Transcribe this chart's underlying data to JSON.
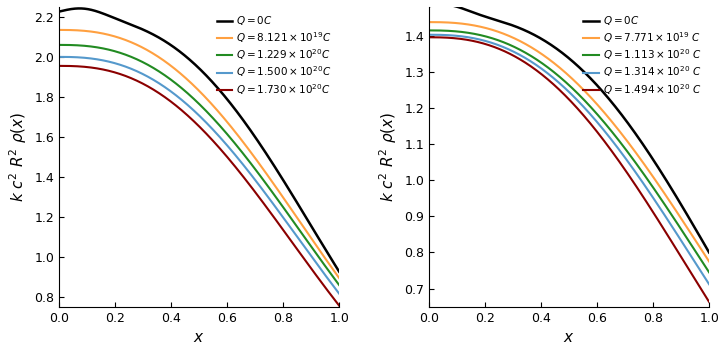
{
  "left": {
    "ylabel": "$k\\ c^2\\ R^2\\ \\rho(x)$",
    "xlabel": "$x$",
    "ylim": [
      0.75,
      2.25
    ],
    "xlim": [
      0,
      1
    ],
    "yticks": [
      0.8,
      1.0,
      1.2,
      1.4,
      1.6,
      1.8,
      2.0,
      2.2
    ],
    "xticks": [
      0.0,
      0.2,
      0.4,
      0.6,
      0.8,
      1.0
    ],
    "curves": [
      {
        "label": "$Q=0C$",
        "color": "#000000",
        "rho0": 2.2,
        "rho1": 0.925,
        "peak_x": 0.08
      },
      {
        "label": "$Q=8.121\\times10^{19}C$",
        "color": "#FFA040",
        "rho0": 2.135,
        "rho1": 0.893,
        "peak_x": 0.0
      },
      {
        "label": "$Q=1.229\\times10^{20}C$",
        "color": "#228B22",
        "rho0": 2.06,
        "rho1": 0.858,
        "peak_x": 0.0
      },
      {
        "label": "$Q=1.500\\times10^{20}C$",
        "color": "#5599CC",
        "rho0": 2.0,
        "rho1": 0.815,
        "peak_x": 0.0
      },
      {
        "label": "$Q=1.730\\times10^{20}C$",
        "color": "#8B0000",
        "rho0": 1.955,
        "rho1": 0.755,
        "peak_x": 0.0
      }
    ]
  },
  "right": {
    "ylabel": "$k\\ c^2\\ R^2\\ \\rho(x)$",
    "xlabel": "$x$",
    "ylim": [
      0.65,
      1.48
    ],
    "xlim": [
      0,
      1
    ],
    "yticks": [
      0.7,
      0.8,
      0.9,
      1.0,
      1.1,
      1.2,
      1.3,
      1.4
    ],
    "xticks": [
      0.0,
      0.2,
      0.4,
      0.6,
      0.8,
      1.0
    ],
    "curves": [
      {
        "label": "$Q=0C$",
        "color": "#000000",
        "rho0": 1.458,
        "rho1": 0.8,
        "peak_x": 0.05
      },
      {
        "label": "$Q=7.771\\times10^{19}\\ C$",
        "color": "#FFA040",
        "rho0": 1.438,
        "rho1": 0.775,
        "peak_x": 0.0
      },
      {
        "label": "$Q=1.113\\times10^{20}\\ C$",
        "color": "#228B22",
        "rho0": 1.415,
        "rho1": 0.745,
        "peak_x": 0.0
      },
      {
        "label": "$Q=1.314\\times10^{20}\\ C$",
        "color": "#5599CC",
        "rho0": 1.403,
        "rho1": 0.712,
        "peak_x": 0.0
      },
      {
        "label": "$Q=1.494\\times10^{20}\\ C$",
        "color": "#8B0000",
        "rho0": 1.396,
        "rho1": 0.663,
        "peak_x": 0.0
      }
    ]
  }
}
